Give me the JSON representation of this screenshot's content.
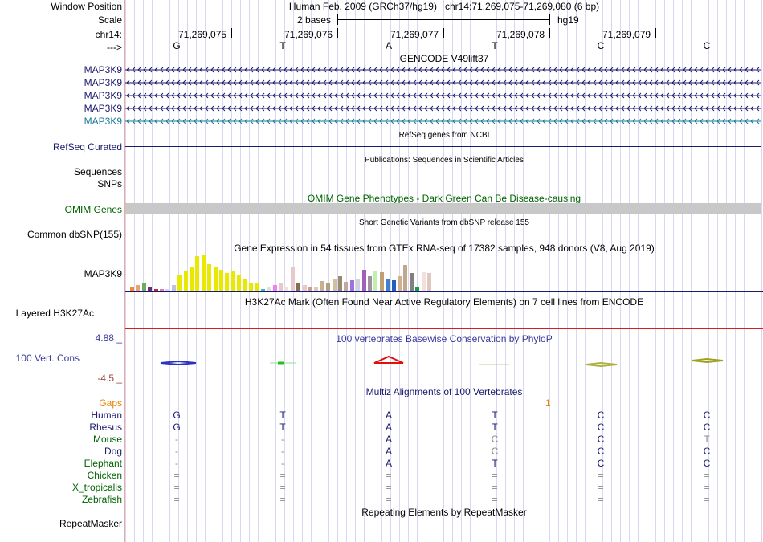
{
  "sidebar": {
    "window_position": "Window Position",
    "scale": "Scale",
    "chrom": "chr14:",
    "strand": "--->",
    "gencode_genes": [
      "MAP3K9",
      "MAP3K9",
      "MAP3K9",
      "MAP3K9",
      "MAP3K9"
    ],
    "refseq": "RefSeq Curated",
    "sequences": "Sequences",
    "snps": "SNPs",
    "omim": "OMIM Genes",
    "common_dbsnp": "Common dbSNP(155)",
    "gtex_gene": "MAP3K9",
    "h3k27ac": "Layered H3K27Ac",
    "phylop_max": "4.88 _",
    "phylop_label": "100 Vert. Cons",
    "phylop_min": "-4.5 _",
    "gaps": "Gaps",
    "species": [
      "Human",
      "Rhesus",
      "Mouse",
      "Dog",
      "Elephant",
      "Chicken",
      "X_tropicalis",
      "Zebrafish"
    ],
    "repeatmasker": "RepeatMasker"
  },
  "header": {
    "assembly": "Human Feb. 2009 (GRCh37/hg19)",
    "position": "chr14:71,269,075-71,269,080 (6 bp)",
    "scale_text": "2 bases",
    "scale_db": "hg19"
  },
  "ruler": {
    "ticks": [
      "71,269,075",
      "71,269,076",
      "71,269,077",
      "71,269,078",
      "71,269,079"
    ],
    "bases": [
      "G",
      "T",
      "A",
      "T",
      "C",
      "C"
    ]
  },
  "tracks": {
    "gencode_title": "GENCODE V49lift37",
    "refseq_title": "RefSeq genes from NCBI",
    "publications_title": "Publications: Sequences in Scientific Articles",
    "omim_title": "OMIM Gene Phenotypes - Dark Green Can Be Disease-causing",
    "dbsnp_title": "Short Genetic Variants from dbSNP release 155",
    "gtex_title": "Gene Expression in 54 tissues from GTEx RNA-seq of 17382 samples, 948 donors (V8, Aug 2019)",
    "h3k27ac_title": "H3K27Ac Mark (Often Found Near Active Regulatory Elements) on 7 cell lines from ENCODE",
    "phylop_title": "100 vertebrates Basewise Conservation by PhyloP",
    "multiz_title": "Multiz Alignments of 100 Vertebrates",
    "repeat_title": "Repeating Elements by RepeatMasker",
    "gap_marker": "1"
  },
  "alignment": {
    "Human": [
      "G",
      "T",
      "A",
      "T",
      "C",
      "C"
    ],
    "Rhesus": [
      "G",
      "T",
      "A",
      "T",
      "C",
      "C"
    ],
    "Mouse": [
      "-",
      "-",
      "A",
      "C",
      "C",
      "T"
    ],
    "Dog": [
      "-",
      "-",
      "A",
      "C",
      "C",
      "C"
    ],
    "Elephant": [
      "-",
      "-",
      "A",
      "T",
      "C",
      "C"
    ],
    "Chicken": [
      "=",
      "=",
      "=",
      "=",
      "=",
      "="
    ],
    "X_tropicalis": [
      "=",
      "=",
      "=",
      "=",
      "=",
      "="
    ],
    "Zebrafish": [
      "=",
      "=",
      "=",
      "=",
      "=",
      "="
    ]
  },
  "gtex_values": [
    0.08,
    0.15,
    0.22,
    0.08,
    0.05,
    0.03,
    0.05,
    0.15,
    0.45,
    0.55,
    0.68,
    0.98,
    1.0,
    0.75,
    0.68,
    0.6,
    0.5,
    0.55,
    0.45,
    0.33,
    0.22,
    0.22,
    0.05,
    0.12,
    0.15,
    0.2,
    0.12,
    0.68,
    0.2,
    0.15,
    0.12,
    0.1,
    0.28,
    0.22,
    0.32,
    0.4,
    0.25,
    0.3,
    0.35,
    0.6,
    0.4,
    0.55,
    0.52,
    0.32,
    0.3,
    0.4,
    0.72,
    0.5,
    0.08,
    0.52,
    0.5
  ],
  "gtex_colors": [
    "#f08c2d",
    "#f0a070",
    "#6aaa64",
    "#6a2c6a",
    "#c8282d",
    "#e080a0",
    "#e0d0ff",
    "#c0c0e0",
    "#e8e800",
    "#e8e800",
    "#e8e800",
    "#e8e800",
    "#e8e800",
    "#e8e800",
    "#e8e800",
    "#e8e800",
    "#e8e800",
    "#e8e800",
    "#e8e800",
    "#e8e800",
    "#e8e800",
    "#e8e800",
    "#30c0c0",
    "#e0e0e0",
    "#f080f0",
    "#e8c8c8",
    "#f0e0e0",
    "#e8c8c8",
    "#8a6a50",
    "#e8c8c8",
    "#c8a080",
    "#e0c8c0",
    "#c8b090",
    "#b0a080",
    "#d0c0a0",
    "#9a8a70",
    "#c0a8a0",
    "#a070e0",
    "#d0d0e0",
    "#a060c0",
    "#a090a0",
    "#c0f0b0",
    "#c0a070",
    "#4080d0",
    "#2060c0",
    "#d0b090",
    "#c0a890",
    "#808080",
    "#10a040",
    "#f0e0e0",
    "#e0c8c0"
  ],
  "colors": {
    "gene_dark": "#1a1a6e",
    "gene_light": "#1a7a9a",
    "omim_label": "#006400",
    "omim_bar": "#c8c8c8",
    "gaps_label": "#e88000",
    "phylop_title": "#3a3a9a",
    "phylop_min": "#a04040",
    "species_primate": "#1a1a6e",
    "species_other": "#006400",
    "h3k27ac_line": "#d02020"
  }
}
